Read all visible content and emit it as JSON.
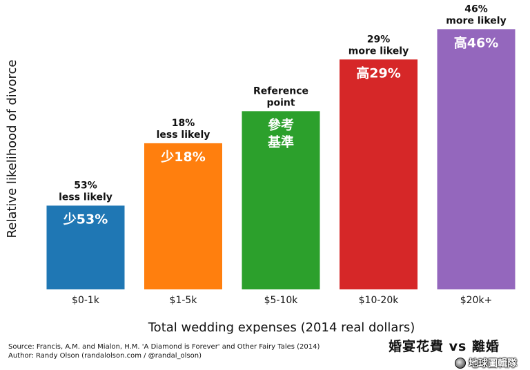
{
  "chart_data": {
    "type": "bar",
    "title": "",
    "xlabel": "Total wedding expenses (2014 real dollars)",
    "ylabel": "Relative likelihood of divorce",
    "categories": [
      "$0-1k",
      "$1-5k",
      "$5-10k",
      "$10-20k",
      "$20k+"
    ],
    "values": [
      0.47,
      0.82,
      1.0,
      1.29,
      1.46
    ],
    "ylim": [
      0,
      1.5
    ],
    "colors": [
      "#1f77b4",
      "#ff7f0e",
      "#2ca02c",
      "#d62728",
      "#9467bd"
    ],
    "annotations": [
      [
        "53%",
        "less likely"
      ],
      [
        "18%",
        "less likely"
      ],
      [
        "Reference",
        "point"
      ],
      [
        "29%",
        "more likely"
      ],
      [
        "46%",
        "more likely"
      ]
    ],
    "bar_labels": [
      [
        "少53%"
      ],
      [
        "少18%"
      ],
      [
        "參考",
        "基準"
      ],
      [
        "高29%"
      ],
      [
        "高46%"
      ]
    ],
    "grid": false,
    "legend": "none"
  },
  "footer": {
    "source": "Source: Francis, A.M. and Mialon, H.M. 'A Diamond is Forever' and Other Fairy Tales (2014)",
    "author": "Author: Randy Olson (randalolson.com / @randal_olson)"
  },
  "brand": {
    "title": "婚宴花費 vs 離婚",
    "site": "地球圖輯隊",
    "icon": "globe-icon"
  }
}
